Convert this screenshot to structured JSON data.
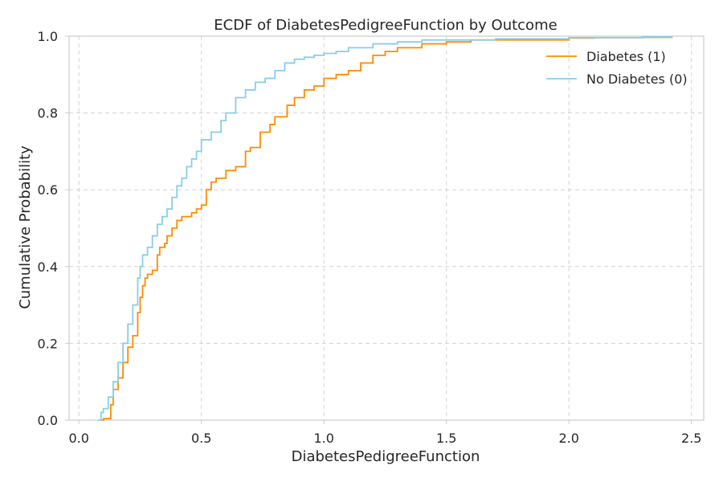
{
  "chart_data": {
    "type": "line",
    "title": "ECDF of DiabetesPedigreeFunction by Outcome",
    "xlabel": "DiabetesPedigreeFunction",
    "ylabel": "Cumulative Probability",
    "xlim": [
      -0.04,
      2.55
    ],
    "ylim": [
      0.0,
      1.0
    ],
    "xticks": [
      0.0,
      0.5,
      1.0,
      1.5,
      2.0,
      2.5
    ],
    "xtick_labels": [
      "0.0",
      "0.5",
      "1.0",
      "1.5",
      "2.0",
      "2.5"
    ],
    "yticks": [
      0.0,
      0.2,
      0.4,
      0.6,
      0.8,
      1.0
    ],
    "ytick_labels": [
      "0.0",
      "0.2",
      "0.4",
      "0.6",
      "0.8",
      "1.0"
    ],
    "grid": true,
    "legend_position": "top-right",
    "series": [
      {
        "name": "Diabetes (1)",
        "color": "#ff8c00",
        "x": [
          0.088,
          0.1,
          0.13,
          0.14,
          0.16,
          0.18,
          0.2,
          0.22,
          0.24,
          0.25,
          0.26,
          0.27,
          0.28,
          0.3,
          0.32,
          0.33,
          0.35,
          0.36,
          0.38,
          0.4,
          0.42,
          0.44,
          0.46,
          0.48,
          0.5,
          0.52,
          0.54,
          0.56,
          0.6,
          0.64,
          0.68,
          0.7,
          0.74,
          0.78,
          0.8,
          0.85,
          0.88,
          0.92,
          0.96,
          1.0,
          1.05,
          1.1,
          1.15,
          1.2,
          1.25,
          1.3,
          1.4,
          1.5,
          1.6,
          1.9,
          2.0,
          2.1,
          2.3,
          2.42
        ],
        "y": [
          0.0,
          0.004,
          0.04,
          0.08,
          0.11,
          0.15,
          0.19,
          0.22,
          0.28,
          0.32,
          0.35,
          0.37,
          0.38,
          0.39,
          0.43,
          0.45,
          0.46,
          0.48,
          0.5,
          0.52,
          0.53,
          0.53,
          0.54,
          0.55,
          0.56,
          0.6,
          0.62,
          0.63,
          0.65,
          0.66,
          0.7,
          0.71,
          0.75,
          0.77,
          0.79,
          0.82,
          0.84,
          0.86,
          0.87,
          0.89,
          0.9,
          0.91,
          0.93,
          0.95,
          0.96,
          0.97,
          0.98,
          0.985,
          0.99,
          0.99,
          0.995,
          0.996,
          0.997,
          1.0
        ]
      },
      {
        "name": "No Diabetes (0)",
        "color": "#87ceeb",
        "x": [
          0.078,
          0.09,
          0.1,
          0.12,
          0.14,
          0.16,
          0.18,
          0.2,
          0.22,
          0.24,
          0.25,
          0.26,
          0.28,
          0.3,
          0.32,
          0.34,
          0.36,
          0.38,
          0.4,
          0.42,
          0.44,
          0.46,
          0.48,
          0.5,
          0.54,
          0.58,
          0.6,
          0.64,
          0.68,
          0.72,
          0.76,
          0.8,
          0.84,
          0.88,
          0.92,
          0.96,
          1.0,
          1.05,
          1.1,
          1.2,
          1.3,
          1.4,
          1.5,
          1.7,
          2.0,
          2.3,
          2.42
        ],
        "y": [
          0.0,
          0.02,
          0.03,
          0.06,
          0.1,
          0.15,
          0.2,
          0.25,
          0.3,
          0.37,
          0.4,
          0.43,
          0.45,
          0.48,
          0.51,
          0.53,
          0.55,
          0.58,
          0.61,
          0.63,
          0.66,
          0.68,
          0.7,
          0.73,
          0.75,
          0.78,
          0.8,
          0.84,
          0.86,
          0.88,
          0.89,
          0.91,
          0.93,
          0.94,
          0.945,
          0.95,
          0.955,
          0.96,
          0.97,
          0.98,
          0.985,
          0.99,
          0.99,
          0.993,
          0.996,
          0.998,
          1.0
        ]
      }
    ]
  }
}
